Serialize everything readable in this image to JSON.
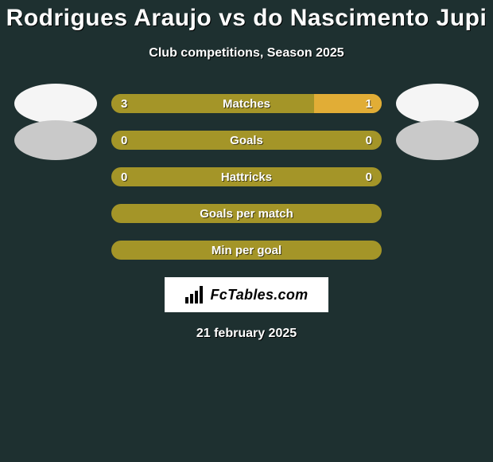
{
  "title": "Rodrigues Araujo vs do Nascimento Jupi",
  "subtitle": "Club competitions, Season 2025",
  "date": "21 february 2025",
  "branding_text": "FcTables.com",
  "colors": {
    "background": "#1e3030",
    "player1": "#a49528",
    "player2": "#e1ad36",
    "track_empty": "#a49528",
    "avatar_light": "#f5f5f5",
    "avatar_dim": "#c9c9c9",
    "text": "#ffffff"
  },
  "rows": [
    {
      "label": "Matches",
      "left_value": "3",
      "right_value": "1",
      "left_pct": 75,
      "right_pct": 25,
      "show_values": true,
      "show_avatars": true,
      "avatar_left_color": "#f5f5f5",
      "avatar_right_color": "#f5f5f5"
    },
    {
      "label": "Goals",
      "left_value": "0",
      "right_value": "0",
      "left_pct": 0,
      "right_pct": 0,
      "show_values": true,
      "show_avatars": true,
      "avatar_left_color": "#c9c9c9",
      "avatar_right_color": "#c9c9c9"
    },
    {
      "label": "Hattricks",
      "left_value": "0",
      "right_value": "0",
      "left_pct": 0,
      "right_pct": 0,
      "show_values": true,
      "show_avatars": false
    },
    {
      "label": "Goals per match",
      "left_value": "",
      "right_value": "",
      "left_pct": 0,
      "right_pct": 0,
      "show_values": false,
      "show_avatars": false
    },
    {
      "label": "Min per goal",
      "left_value": "",
      "right_value": "",
      "left_pct": 0,
      "right_pct": 0,
      "show_values": false,
      "show_avatars": false
    }
  ]
}
